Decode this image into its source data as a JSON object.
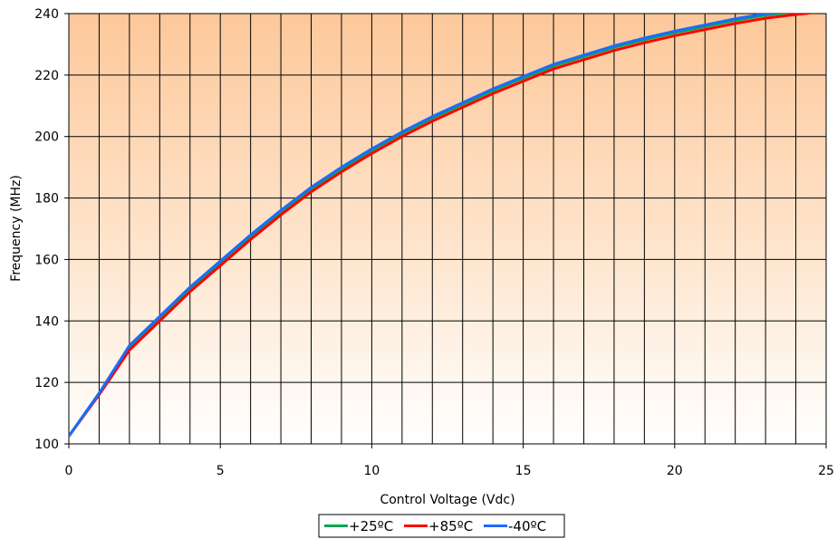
{
  "chart_data": {
    "type": "line",
    "title": "",
    "xlabel": "Control Voltage (Vdc)",
    "ylabel": "Frequency (MHz)",
    "xlim": [
      0,
      25
    ],
    "ylim": [
      100,
      240
    ],
    "xticks": [
      0,
      5,
      10,
      15,
      20,
      25
    ],
    "yticks": [
      100,
      120,
      140,
      160,
      180,
      200,
      220,
      240
    ],
    "x_minor_step": 1,
    "grid": true,
    "background": "orange-to-white vertical gradient",
    "legend_position": "bottom-center",
    "series": [
      {
        "name": "+25ºC",
        "color": "#00a651",
        "x": [
          0,
          1,
          2,
          3,
          4,
          5,
          6,
          7,
          8,
          9,
          10,
          11,
          12,
          13,
          14,
          15,
          16,
          17,
          18,
          19,
          20,
          21,
          22,
          23,
          24,
          24.5
        ],
        "y": [
          102.5,
          116.5,
          131.5,
          141,
          150.5,
          159,
          167.5,
          175.5,
          183,
          189.5,
          195.5,
          201,
          206,
          210.5,
          215,
          219,
          223,
          226,
          229,
          231.5,
          233.8,
          235.8,
          237.8,
          239.5,
          240.6,
          241
        ]
      },
      {
        "name": "+85ºC",
        "color": "#ff0000",
        "x": [
          0,
          1,
          2,
          3,
          4,
          5,
          6,
          7,
          8,
          9,
          10,
          11,
          12,
          13,
          14,
          15,
          16,
          17,
          18,
          19,
          20,
          21,
          22,
          23,
          24,
          24.5
        ],
        "y": [
          102.5,
          116,
          130.5,
          140,
          149.5,
          158,
          166.5,
          174.5,
          182,
          188.5,
          194.5,
          200,
          205,
          209.5,
          214,
          218,
          222,
          225,
          228,
          230.5,
          232.8,
          234.8,
          236.8,
          238.5,
          239.7,
          240.2
        ]
      },
      {
        "name": "-40ºC",
        "color": "#1a6cff",
        "x": [
          0,
          1,
          2,
          3,
          4,
          5,
          6,
          7,
          8,
          9,
          10,
          11,
          12,
          13,
          14,
          15,
          16,
          17,
          18,
          19,
          20,
          21,
          22,
          23,
          24,
          24.5
        ],
        "y": [
          102.5,
          116.5,
          132,
          141.5,
          151,
          159.5,
          168,
          176,
          183.5,
          190,
          196,
          201.5,
          206.5,
          211,
          215.5,
          219.5,
          223.5,
          226.5,
          229.5,
          232,
          234.3,
          236.3,
          238.3,
          240,
          241,
          241.5
        ]
      }
    ]
  }
}
